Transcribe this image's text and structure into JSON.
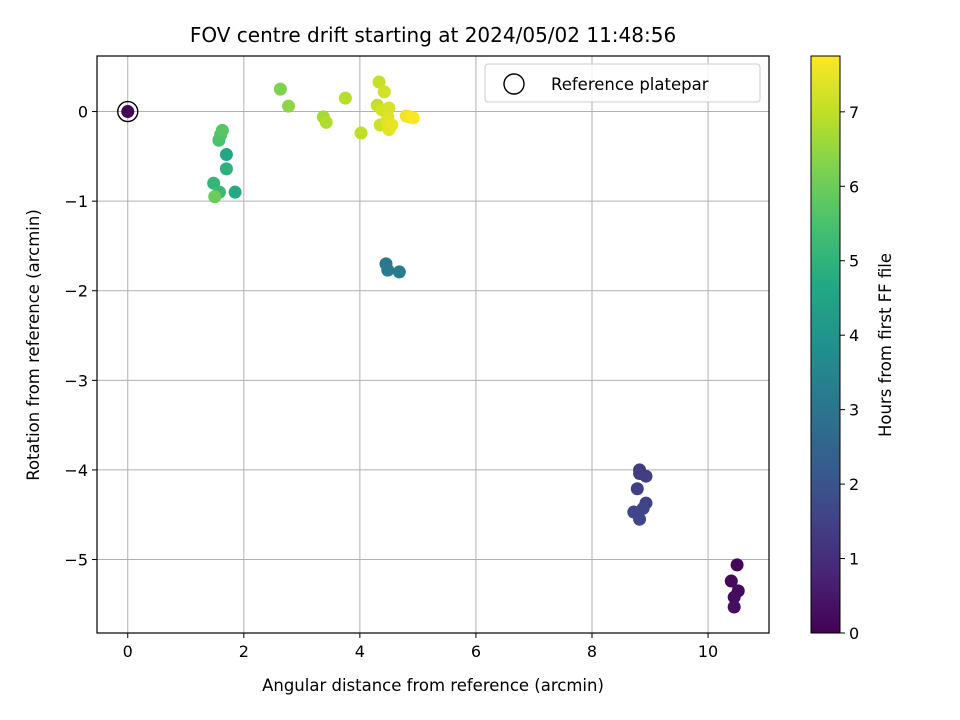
{
  "chart_data": {
    "type": "scatter",
    "title": "FOV centre drift starting at 2024/05/02 11:48:56",
    "xlabel": "Angular distance from reference (arcmin)",
    "ylabel": "Rotation from reference (arcmin)",
    "xlim": [
      -0.53,
      11.05
    ],
    "ylim": [
      -5.82,
      0.62
    ],
    "xticks": [
      0,
      2,
      4,
      6,
      8,
      10
    ],
    "yticks": [
      0,
      -1,
      -2,
      -3,
      -4,
      -5
    ],
    "xtick_labels": [
      "0",
      "2",
      "4",
      "6",
      "8",
      "10"
    ],
    "ytick_labels": [
      "0",
      "−1",
      "−2",
      "−3",
      "−4",
      "−5"
    ],
    "grid": true,
    "legend": {
      "placement": "top-right",
      "entries": [
        "Reference platepar"
      ]
    },
    "reference_point": {
      "x": 0,
      "y": 0
    },
    "colorbar": {
      "label": "Hours from first FF file",
      "range": [
        0,
        7.75
      ],
      "ticks": [
        0,
        1,
        2,
        3,
        4,
        5,
        6,
        7
      ],
      "colormap": "viridis"
    },
    "points": [
      {
        "x": 0,
        "y": 0,
        "t": 0.05
      },
      {
        "x": 10.5,
        "y": -5.06,
        "t": 0.1
      },
      {
        "x": 10.4,
        "y": -5.24,
        "t": 0.15
      },
      {
        "x": 10.52,
        "y": -5.35,
        "t": 0.2
      },
      {
        "x": 10.45,
        "y": -5.42,
        "t": 0.25
      },
      {
        "x": 10.45,
        "y": -5.53,
        "t": 0.3
      },
      {
        "x": 8.82,
        "y": -4.0,
        "t": 1.3
      },
      {
        "x": 8.82,
        "y": -4.04,
        "t": 1.35
      },
      {
        "x": 8.93,
        "y": -4.07,
        "t": 1.4
      },
      {
        "x": 8.78,
        "y": -4.21,
        "t": 1.45
      },
      {
        "x": 8.93,
        "y": -4.37,
        "t": 1.5
      },
      {
        "x": 8.88,
        "y": -4.43,
        "t": 1.55
      },
      {
        "x": 8.72,
        "y": -4.47,
        "t": 1.6
      },
      {
        "x": 8.82,
        "y": -4.55,
        "t": 1.65
      },
      {
        "x": 4.45,
        "y": -1.7,
        "t": 3.1
      },
      {
        "x": 4.48,
        "y": -1.77,
        "t": 3.15
      },
      {
        "x": 4.68,
        "y": -1.79,
        "t": 3.2
      },
      {
        "x": 1.7,
        "y": -0.48,
        "t": 4.6
      },
      {
        "x": 1.85,
        "y": -0.9,
        "t": 4.7
      },
      {
        "x": 1.7,
        "y": -0.64,
        "t": 4.9
      },
      {
        "x": 1.48,
        "y": -0.8,
        "t": 5.1
      },
      {
        "x": 1.58,
        "y": -0.9,
        "t": 5.2
      },
      {
        "x": 1.5,
        "y": -0.95,
        "t": 5.3
      },
      {
        "x": 1.57,
        "y": -0.32,
        "t": 5.5
      },
      {
        "x": 1.6,
        "y": -0.26,
        "t": 5.6
      },
      {
        "x": 1.63,
        "y": -0.21,
        "t": 5.7
      },
      {
        "x": 1.5,
        "y": -0.95,
        "t": 6.0
      },
      {
        "x": 2.63,
        "y": 0.25,
        "t": 6.25
      },
      {
        "x": 2.77,
        "y": 0.06,
        "t": 6.4
      },
      {
        "x": 3.37,
        "y": -0.06,
        "t": 6.7
      },
      {
        "x": 3.42,
        "y": -0.12,
        "t": 6.8
      },
      {
        "x": 3.75,
        "y": 0.15,
        "t": 6.9
      },
      {
        "x": 4.02,
        "y": -0.24,
        "t": 7.0
      },
      {
        "x": 4.3,
        "y": 0.07,
        "t": 7.05
      },
      {
        "x": 4.33,
        "y": 0.33,
        "t": 7.1
      },
      {
        "x": 4.35,
        "y": -0.15,
        "t": 7.15
      },
      {
        "x": 4.42,
        "y": 0.22,
        "t": 7.2
      },
      {
        "x": 4.38,
        "y": 0.02,
        "t": 7.25
      },
      {
        "x": 4.5,
        "y": 0.04,
        "t": 7.3
      },
      {
        "x": 4.48,
        "y": -0.06,
        "t": 7.35
      },
      {
        "x": 4.47,
        "y": -0.12,
        "t": 7.4
      },
      {
        "x": 4.5,
        "y": -0.2,
        "t": 7.45
      },
      {
        "x": 4.55,
        "y": -0.15,
        "t": 7.5
      },
      {
        "x": 4.8,
        "y": -0.05,
        "t": 7.55
      },
      {
        "x": 4.85,
        "y": -0.06,
        "t": 7.6
      },
      {
        "x": 4.92,
        "y": -0.07,
        "t": 7.7
      }
    ]
  }
}
